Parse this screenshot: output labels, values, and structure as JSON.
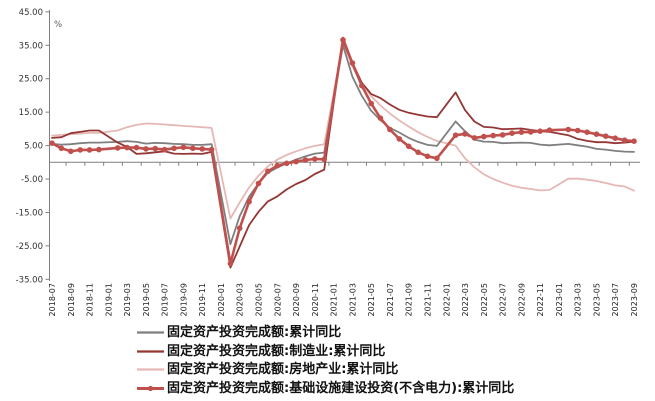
{
  "chart": {
    "y_axis": {
      "unit": "%",
      "tick_values": [
        45,
        35,
        25,
        15,
        5,
        -5,
        -15,
        -25,
        -35
      ],
      "tick_labels": [
        "45.00",
        "35.00",
        "25.00",
        "15.00",
        "5.00",
        "-5.00",
        "-15.00",
        "-25.00",
        "-35.00"
      ]
    },
    "x_axis": {
      "tick_labels": [
        "2018-07",
        "2018-09",
        "2018-11",
        "2019-01",
        "2019-03",
        "2019-05",
        "2019-07",
        "2019-09",
        "2019-11",
        "2020-01",
        "2020-03",
        "2020-05",
        "2020-07",
        "2020-09",
        "2020-11",
        "2021-01",
        "2021-03",
        "2021-05",
        "2021-07",
        "2021-09",
        "2021-11",
        "2022-01",
        "2022-03",
        "2022-05",
        "2022-07",
        "2022-09",
        "2022-11",
        "2023-01",
        "2023-03",
        "2023-05",
        "2023-07",
        "2023-09"
      ]
    },
    "colors": {
      "axis": "#7f7f7f",
      "tick_text": "#333333",
      "unit_text": "#595959"
    }
  },
  "chart_data": {
    "type": "line",
    "title": "",
    "ylabel": "%",
    "ylim": [
      -35,
      45
    ],
    "grid": false,
    "legend_position": "bottom",
    "x": [
      "2018-07",
      "2018-08",
      "2018-09",
      "2018-10",
      "2018-11",
      "2018-12",
      "2019-01",
      "2019-02",
      "2019-03",
      "2019-04",
      "2019-05",
      "2019-06",
      "2019-07",
      "2019-08",
      "2019-09",
      "2019-10",
      "2019-11",
      "2019-12",
      "2020-01",
      "2020-02",
      "2020-03",
      "2020-04",
      "2020-05",
      "2020-06",
      "2020-07",
      "2020-08",
      "2020-09",
      "2020-10",
      "2020-11",
      "2020-12",
      "2021-01",
      "2021-02",
      "2021-03",
      "2021-04",
      "2021-05",
      "2021-06",
      "2021-07",
      "2021-08",
      "2021-09",
      "2021-10",
      "2021-11",
      "2021-12",
      "2022-01",
      "2022-02",
      "2022-03",
      "2022-04",
      "2022-05",
      "2022-06",
      "2022-07",
      "2022-08",
      "2022-09",
      "2022-10",
      "2022-11",
      "2022-12",
      "2023-01",
      "2023-02",
      "2023-03",
      "2023-04",
      "2023-05",
      "2023-06",
      "2023-07",
      "2023-08",
      "2023-09"
    ],
    "series": [
      {
        "name": "固定资产投资完成额:累计同比",
        "color": "#7f7f7f",
        "line_width": 1.8,
        "marker": false,
        "values": [
          5.5,
          5.3,
          5.4,
          5.7,
          5.9,
          5.9,
          null,
          6.1,
          6.3,
          6.1,
          5.6,
          5.8,
          5.7,
          5.5,
          5.4,
          5.2,
          5.2,
          5.4,
          null,
          -24.5,
          -16.1,
          -10.3,
          -6.3,
          -3.1,
          -1.6,
          -0.3,
          0.8,
          1.8,
          2.6,
          2.9,
          null,
          35.0,
          25.6,
          19.9,
          15.4,
          12.6,
          10.3,
          8.9,
          7.3,
          6.1,
          5.2,
          4.9,
          null,
          12.2,
          9.3,
          6.8,
          6.2,
          6.1,
          5.7,
          5.8,
          5.9,
          5.8,
          5.3,
          5.1,
          null,
          5.5,
          5.1,
          4.7,
          4.0,
          3.8,
          3.4,
          3.2,
          3.1
        ]
      },
      {
        "name": "固定资产投资完成额:制造业:累计同比",
        "color": "#943735",
        "line_width": 1.8,
        "marker": false,
        "values": [
          7.3,
          7.5,
          8.7,
          9.1,
          9.5,
          9.5,
          null,
          5.9,
          4.6,
          2.5,
          2.7,
          3.0,
          3.3,
          2.6,
          2.5,
          2.6,
          2.5,
          3.1,
          null,
          -31.5,
          -25.2,
          -18.8,
          -14.8,
          -11.7,
          -10.2,
          -8.1,
          -6.5,
          -5.3,
          -3.5,
          -2.2,
          null,
          37.3,
          29.8,
          23.8,
          20.4,
          19.2,
          17.3,
          15.7,
          14.8,
          14.2,
          13.7,
          13.5,
          null,
          20.9,
          15.6,
          12.2,
          10.6,
          10.4,
          9.9,
          10.0,
          10.1,
          9.7,
          9.3,
          9.1,
          null,
          8.1,
          7.0,
          6.4,
          6.0,
          6.0,
          5.7,
          5.9,
          6.2
        ]
      },
      {
        "name": "固定资产投资完成额:房地产业:累计同比",
        "color": "#e5b8b6",
        "line_width": 1.8,
        "marker": false,
        "values": [
          8.0,
          8.2,
          8.4,
          8.6,
          8.8,
          8.8,
          null,
          9.5,
          10.5,
          11.2,
          11.6,
          11.5,
          11.3,
          11.1,
          10.9,
          10.7,
          10.5,
          10.3,
          null,
          -16.8,
          -12.0,
          -7.5,
          -4.0,
          -1.2,
          0.8,
          2.2,
          3.3,
          4.2,
          4.9,
          5.4,
          null,
          35.8,
          28.6,
          23.4,
          19.8,
          17.0,
          14.6,
          12.5,
          10.7,
          9.0,
          7.6,
          6.4,
          null,
          5.0,
          1.2,
          -1.5,
          -3.6,
          -5.0,
          -6.1,
          -7.0,
          -7.6,
          -8.0,
          -8.4,
          -8.3,
          null,
          -4.9,
          -4.9,
          -5.2,
          -5.6,
          -6.2,
          -6.9,
          -7.2,
          -8.5
        ]
      },
      {
        "name": "固定资产投资完成额:基础设施建设投资(不含电力):累计同比",
        "color": "#c0504d",
        "line_width": 2.6,
        "marker": true,
        "values": [
          5.7,
          4.2,
          3.3,
          3.7,
          3.7,
          3.8,
          null,
          4.3,
          4.4,
          4.4,
          4.0,
          4.1,
          3.8,
          4.2,
          4.5,
          4.2,
          4.0,
          3.8,
          null,
          -30.3,
          -19.7,
          -11.8,
          -6.3,
          -2.7,
          -1.0,
          -0.3,
          0.2,
          0.7,
          1.0,
          0.9,
          null,
          36.6,
          29.7,
          22.9,
          17.6,
          13.2,
          9.8,
          7.0,
          4.8,
          3.0,
          1.8,
          1.2,
          null,
          8.1,
          8.5,
          7.3,
          7.7,
          8.0,
          8.2,
          8.7,
          9.0,
          9.1,
          9.3,
          9.6,
          null,
          9.8,
          9.5,
          9.0,
          8.4,
          7.8,
          7.2,
          6.6,
          6.3
        ]
      }
    ]
  }
}
